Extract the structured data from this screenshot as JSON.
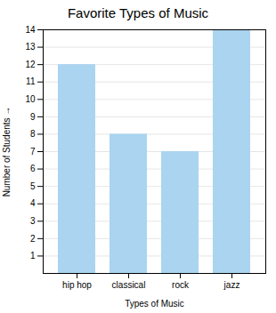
{
  "chart_data": {
    "type": "bar",
    "title": "Favorite Types of Music",
    "xlabel": "Types of Music",
    "ylabel": "Number of Students",
    "categories": [
      "hip hop",
      "classical",
      "rock",
      "jazz"
    ],
    "values": [
      12,
      8,
      7,
      14
    ],
    "color": "#aad4f0",
    "ylim": [
      0,
      14
    ],
    "yticks": [
      1,
      2,
      3,
      4,
      5,
      6,
      7,
      8,
      9,
      10,
      11,
      12,
      13,
      14
    ],
    "grid": true
  }
}
